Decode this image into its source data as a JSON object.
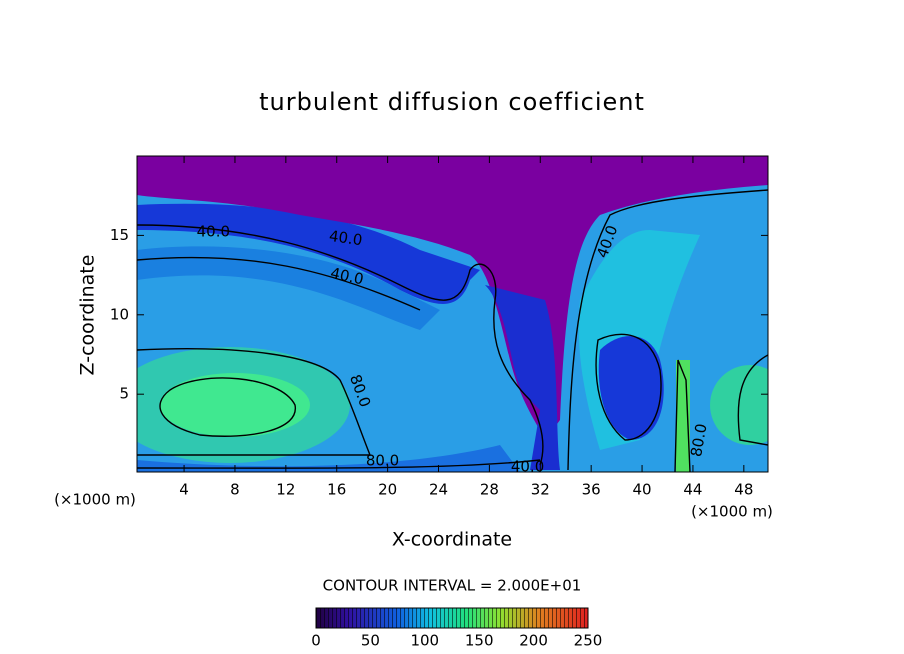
{
  "chart_data": {
    "type": "contour",
    "title": "turbulent diffusion coefficient",
    "x_label": "X-coordinate",
    "y_label": "Z-coordinate",
    "x_unit": "(×1000 m)",
    "xlim": [
      0.3,
      49.9
    ],
    "xticks": [
      4,
      8,
      12,
      16,
      20,
      24,
      28,
      32,
      36,
      40,
      44,
      48
    ],
    "ylim": [
      0.1,
      20
    ],
    "yticks": [
      5,
      10,
      15
    ],
    "contour_interval_label": "CONTOUR INTERVAL = 2.000E+01",
    "contour_labels": [
      {
        "value": 40,
        "label": "40.0",
        "x": 6.3,
        "y": 15.2
      },
      {
        "value": 40,
        "label": "40.0",
        "x": 16.7,
        "y": 14.8
      },
      {
        "value": 40,
        "label": "40.0",
        "x": 16.8,
        "y": 12.4
      },
      {
        "value": 40,
        "label": "40.0",
        "x": 37.3,
        "y": 14.6
      },
      {
        "value": 80,
        "label": "80.0",
        "x": 17.8,
        "y": 5.2
      },
      {
        "value": 80,
        "label": "80.0",
        "x": 19.6,
        "y": 0.8
      },
      {
        "value": 40,
        "label": "40.0",
        "x": 31,
        "y": 0.4
      },
      {
        "value": 80,
        "label": "80.0",
        "x": 44.5,
        "y": 2.1
      }
    ],
    "colorbar": {
      "lim": [
        0,
        250
      ],
      "ticks": [
        0,
        50,
        100,
        150,
        200,
        250
      ]
    }
  }
}
